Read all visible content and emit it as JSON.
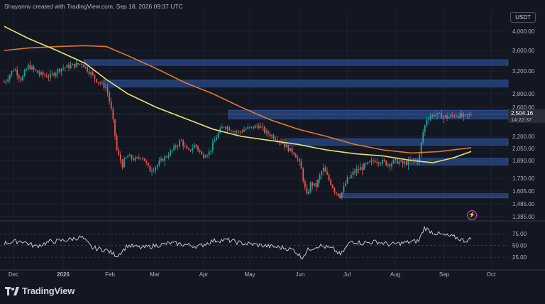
{
  "header": {
    "attribution": "Shayannv created with TradingView.com, Sep 18, 2026 09:37 UTC"
  },
  "currency": "USDT",
  "footer": {
    "brand": "TradingView"
  },
  "icons": {
    "alert": "lightning-icon",
    "logo": "tradingview-logo-icon"
  },
  "colors": {
    "background": "#131722",
    "grid": "#1e222d",
    "up": "#26a69a",
    "down": "#ef5350",
    "zone": "#2a4a8a",
    "ma_fast": "#e8e26a",
    "ma_slow": "#d9792c",
    "rsi": "#d1d4dc"
  },
  "chart_data": {
    "type": "candlestick",
    "price_axis": {
      "ticks": [
        "4,000.00",
        "3,600.00",
        "3,200.00",
        "2,800.00",
        "2,600.00",
        "2,200.00",
        "2,050.00",
        "1,890.00",
        "1,730.00",
        "1,605.00",
        "1,485.00",
        "1,385.00"
      ],
      "ylim": [
        1385,
        4000
      ]
    },
    "last_price": {
      "value": "2,504.16",
      "countdown": "14:22:37"
    },
    "x_axis": {
      "ticks": [
        "Dec",
        "2026",
        "Feb",
        "Mar",
        "Apr",
        "May",
        "Jun",
        "Jul",
        "Aug",
        "Sep",
        "Oct"
      ]
    },
    "zones": [
      {
        "low": 3310,
        "high": 3420
      },
      {
        "low": 2920,
        "high": 3040
      },
      {
        "low": 2440,
        "high": 2560
      },
      {
        "low": 2090,
        "high": 2170
      },
      {
        "low": 1850,
        "high": 1920
      },
      {
        "low": 1540,
        "high": 1580
      }
    ],
    "rsi": {
      "ticks": [
        "75.00",
        "50.00",
        "25.00"
      ],
      "ylim": [
        10,
        95
      ]
    }
  }
}
